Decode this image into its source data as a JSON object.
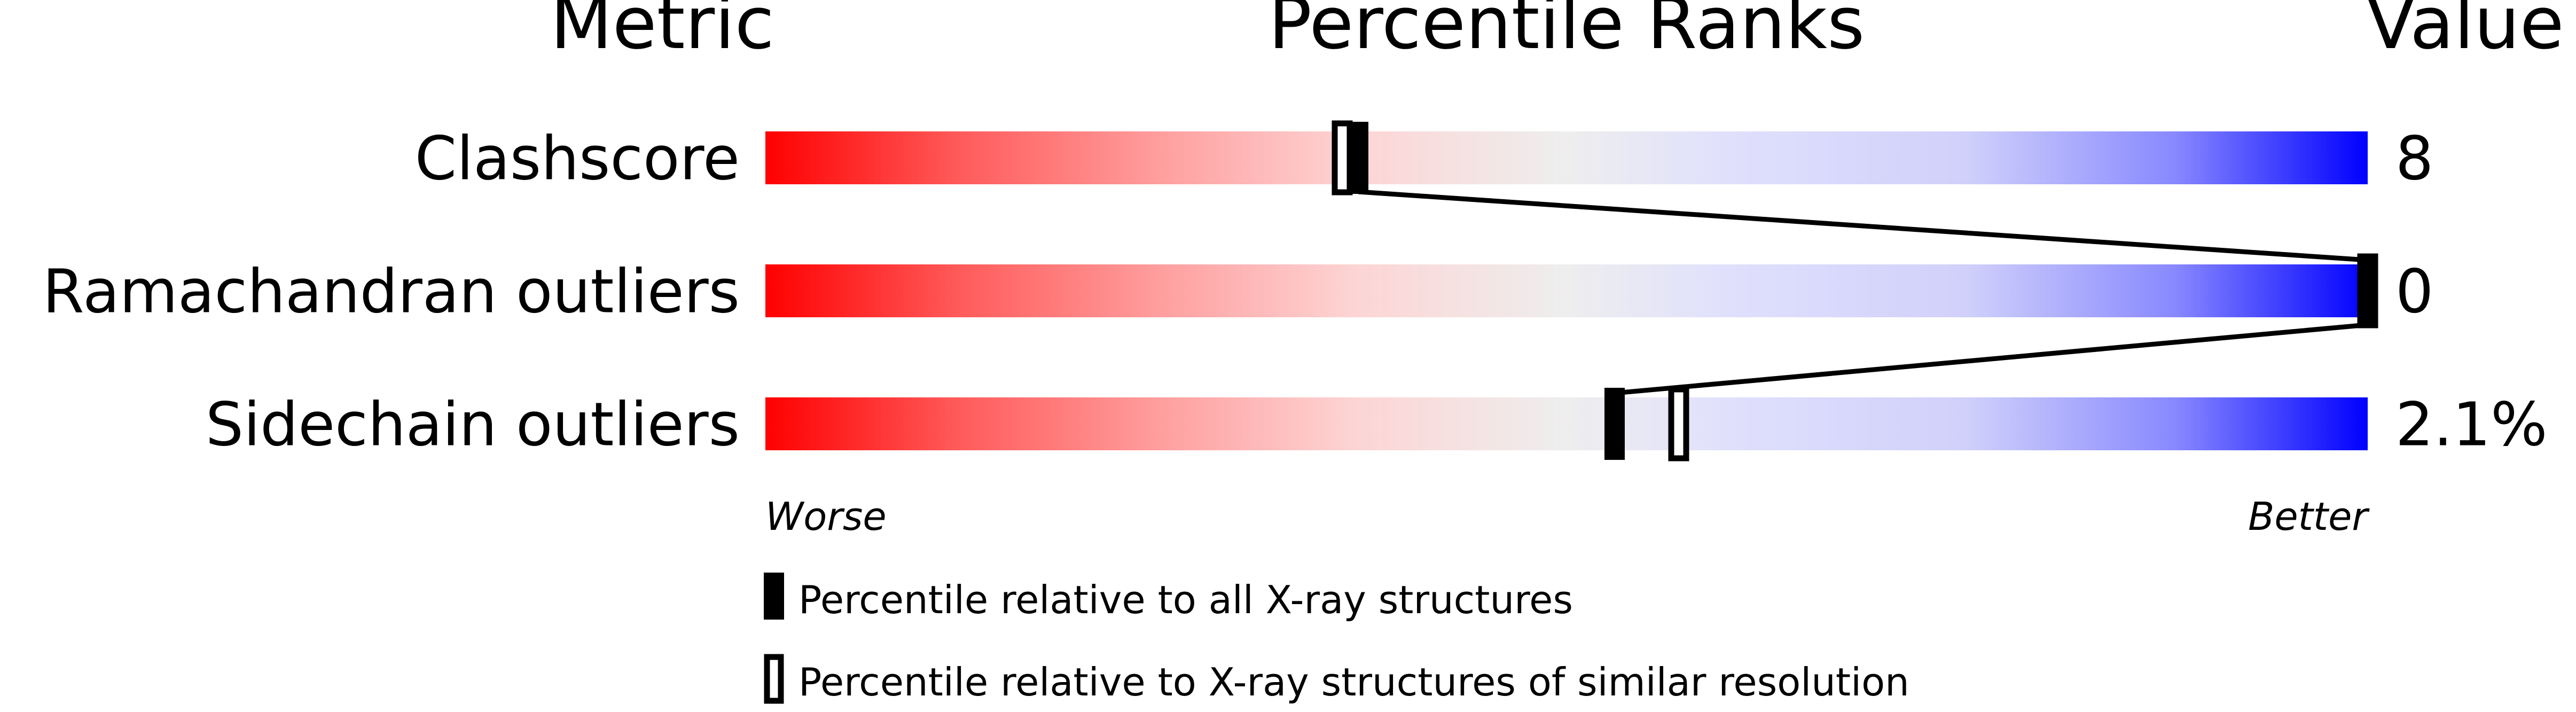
{
  "chart_data": {
    "type": "percentile-slider",
    "headers": {
      "metric": "Metric",
      "ranks": "Percentile Ranks",
      "value": "Value"
    },
    "xlim": [
      0,
      100
    ],
    "rows": [
      {
        "metric": "Clashscore",
        "value": "8",
        "percentile_all": 37,
        "percentile_similar": 36
      },
      {
        "metric": "Ramachandran outliers",
        "value": "0",
        "percentile_all": 100,
        "percentile_similar": 100
      },
      {
        "metric": "Sidechain outliers",
        "value": "2.1%",
        "percentile_all": 53,
        "percentile_similar": 57
      }
    ],
    "axis": {
      "left": "Worse",
      "right": "Better"
    },
    "legend": {
      "all": "Percentile relative to all X-ray structures",
      "similar": "Percentile relative to X-ray structures of similar resolution"
    },
    "colors": {
      "worse": "#ff0000",
      "middle": "#eeeeee",
      "better": "#0000ff",
      "marker": "#000000"
    }
  }
}
